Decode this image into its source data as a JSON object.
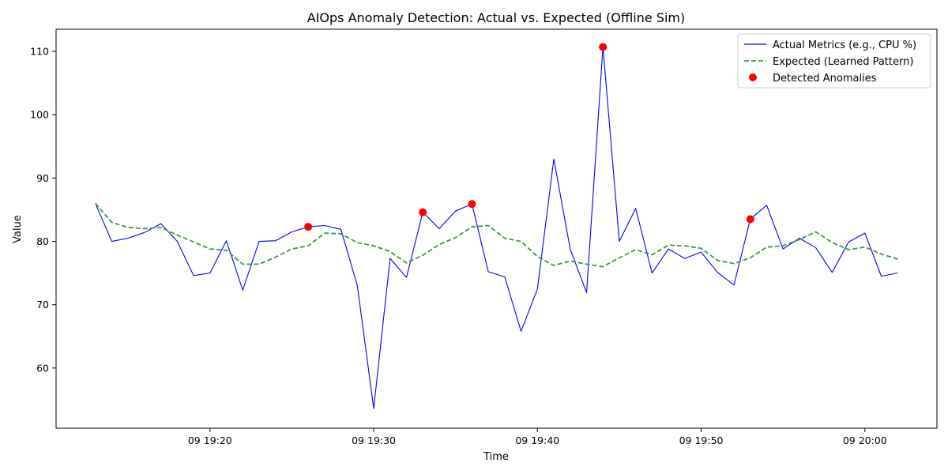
{
  "chart_data": {
    "type": "line",
    "title": "AIOps Anomaly Detection: Actual vs. Expected (Offline Sim)",
    "xlabel": "Time",
    "ylabel": "Value",
    "x_start": "09 19:13",
    "x_step_minutes": 1,
    "xlim": [
      "09 19:10.6",
      "09 20:04.4"
    ],
    "ylim": [
      50.5,
      113.5
    ],
    "x_ticks": [
      "09 19:20",
      "09 19:30",
      "09 19:40",
      "09 19:50",
      "09 20:00"
    ],
    "x_tick_minutes": [
      20,
      30,
      40,
      50,
      60
    ],
    "y_ticks": [
      60,
      70,
      80,
      90,
      100,
      110
    ],
    "grid": false,
    "legend_position": "top-right",
    "series": [
      {
        "name": "Actual Metrics (e.g., CPU %)",
        "style": "solid",
        "color": "#0000ff",
        "values": [
          86.0,
          80.0,
          80.5,
          81.4,
          82.8,
          80.0,
          74.6,
          75.0,
          80.1,
          72.3,
          80.0,
          80.1,
          81.5,
          82.3,
          82.5,
          81.9,
          73.0,
          53.6,
          77.3,
          74.3,
          84.6,
          82.0,
          84.8,
          85.9,
          75.2,
          74.4,
          65.8,
          72.5,
          93.0,
          78.8,
          71.9,
          110.7,
          80.0,
          85.2,
          75.0,
          78.8,
          77.3,
          78.3,
          75.1,
          73.1,
          83.5,
          85.7,
          78.8,
          80.5,
          79.0,
          75.1,
          79.9,
          81.3,
          74.5,
          75.0
        ]
      },
      {
        "name": "Expected (Learned Pattern)",
        "style": "dashed",
        "color": "#3a9a3a",
        "values": [
          86.0,
          83.0,
          82.2,
          82.0,
          82.2,
          81.0,
          79.9,
          78.8,
          78.6,
          76.4,
          76.4,
          77.5,
          78.8,
          79.3,
          81.3,
          81.2,
          79.8,
          79.3,
          78.4,
          76.6,
          77.8,
          79.5,
          80.6,
          82.3,
          82.5,
          80.5,
          80.0,
          77.6,
          76.2,
          76.9,
          76.4,
          76.0,
          77.4,
          78.7,
          77.9,
          79.4,
          79.3,
          78.9,
          77.0,
          76.5,
          77.4,
          79.1,
          79.3,
          80.3,
          81.5,
          79.8,
          78.7,
          79.1,
          78.0,
          77.2
        ]
      }
    ],
    "anomalies": {
      "name": "Detected Anomalies",
      "color": "#ff0000",
      "points": [
        {
          "minute": 26,
          "value": 82.3
        },
        {
          "minute": 33,
          "value": 84.6
        },
        {
          "minute": 36,
          "value": 85.9
        },
        {
          "minute": 44,
          "value": 110.7
        },
        {
          "minute": 53,
          "value": 83.5
        }
      ]
    }
  }
}
